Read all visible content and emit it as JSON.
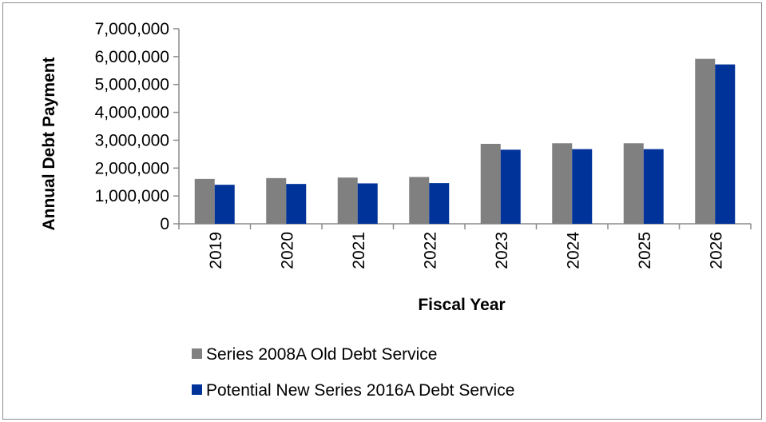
{
  "chart_data": {
    "type": "bar",
    "title": "",
    "xlabel": "Fiscal Year",
    "ylabel": "Annual Debt Payment",
    "categories": [
      "2019",
      "2020",
      "2021",
      "2022",
      "2023",
      "2024",
      "2025",
      "2026"
    ],
    "series": [
      {
        "name": "Series 2008A Old Debt Service",
        "color": "#808080",
        "values": [
          1610000,
          1640000,
          1660000,
          1680000,
          2870000,
          2890000,
          2890000,
          5920000
        ]
      },
      {
        "name": "Potential New Series 2016A Debt Service",
        "color": "#003399",
        "values": [
          1400000,
          1430000,
          1450000,
          1460000,
          2660000,
          2680000,
          2680000,
          5720000
        ]
      }
    ],
    "ylim": [
      0,
      7000000
    ],
    "yticks": [
      "0",
      "1,000,000",
      "2,000,000",
      "3,000,000",
      "4,000,000",
      "5,000,000",
      "6,000,000",
      "7,000,000"
    ],
    "grid": false,
    "legend_position": "bottom"
  }
}
